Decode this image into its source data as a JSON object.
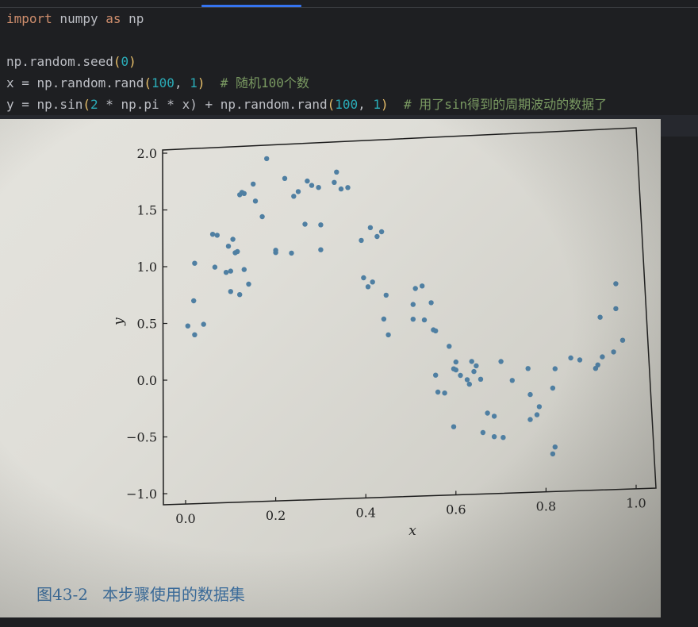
{
  "editor": {
    "code_lines": [
      [
        {
          "t": "import",
          "c": "kw"
        },
        {
          "t": " numpy ",
          "c": ""
        },
        {
          "t": "as",
          "c": "kw"
        },
        {
          "t": " np",
          "c": ""
        }
      ],
      [],
      [
        {
          "t": "np.random.seed",
          "c": ""
        },
        {
          "t": "(",
          "c": "paren"
        },
        {
          "t": "0",
          "c": "num"
        },
        {
          "t": ")",
          "c": "paren"
        }
      ],
      [
        {
          "t": "x = np.random.rand",
          "c": ""
        },
        {
          "t": "(",
          "c": "paren"
        },
        {
          "t": "100",
          "c": "num"
        },
        {
          "t": ", ",
          "c": ""
        },
        {
          "t": "1",
          "c": "num"
        },
        {
          "t": ")",
          "c": "paren"
        },
        {
          "t": "  # 随机100个数",
          "c": "cmt"
        }
      ],
      [
        {
          "t": "y = np.sin",
          "c": ""
        },
        {
          "t": "(",
          "c": "paren"
        },
        {
          "t": "2",
          "c": "num"
        },
        {
          "t": " * np.pi * x) + np.random.rand",
          "c": ""
        },
        {
          "t": "(",
          "c": "paren"
        },
        {
          "t": "100",
          "c": "num"
        },
        {
          "t": ", ",
          "c": ""
        },
        {
          "t": "1",
          "c": "num"
        },
        {
          "t": ")",
          "c": "paren"
        },
        {
          "t": "  # 用了sin得到的周期波动的数据了",
          "c": "cmt"
        }
      ]
    ]
  },
  "colors": {
    "point": "#4f7fa2",
    "axis": "#1c1c1c",
    "caption": "#3a6fa2",
    "keyword": "#cf8e6d",
    "number": "#2aacb8",
    "comment": "#7a9a62"
  },
  "caption": {
    "fig_num": "图43-2",
    "text": "本步骤使用的数据集"
  },
  "chart_data": {
    "type": "scatter",
    "xlabel": "x",
    "ylabel": "y",
    "xlim": [
      -0.05,
      1.03
    ],
    "ylim": [
      -1.05,
      2.1
    ],
    "xticks": [
      0.0,
      0.2,
      0.4,
      0.6,
      0.8,
      1.0
    ],
    "xtick_labels": [
      "0.0",
      "0.2",
      "0.4",
      "0.6",
      "0.8",
      "1.0"
    ],
    "yticks": [
      -1.0,
      -0.5,
      0.0,
      0.5,
      1.0,
      1.5,
      2.0
    ],
    "ytick_labels": [
      "−1.0",
      "−0.5",
      "0.0",
      "0.5",
      "1.0",
      "1.5",
      "2.0"
    ],
    "grid": false,
    "points": [
      [
        0.005,
        0.47
      ],
      [
        0.02,
        0.39
      ],
      [
        0.018,
        0.69
      ],
      [
        0.02,
        1.02
      ],
      [
        0.04,
        0.48
      ],
      [
        0.06,
        1.27
      ],
      [
        0.07,
        1.26
      ],
      [
        0.065,
        0.98
      ],
      [
        0.09,
        0.93
      ],
      [
        0.1,
        0.94
      ],
      [
        0.095,
        1.16
      ],
      [
        0.105,
        1.22
      ],
      [
        0.1,
        0.76
      ],
      [
        0.11,
        1.1
      ],
      [
        0.115,
        1.11
      ],
      [
        0.12,
        1.61
      ],
      [
        0.125,
        1.63
      ],
      [
        0.13,
        1.62
      ],
      [
        0.13,
        0.95
      ],
      [
        0.12,
        0.73
      ],
      [
        0.14,
        0.82
      ],
      [
        0.15,
        1.7
      ],
      [
        0.155,
        1.55
      ],
      [
        0.17,
        1.41
      ],
      [
        0.18,
        1.92
      ],
      [
        0.2,
        1.09
      ],
      [
        0.2,
        1.11
      ],
      [
        0.22,
        1.74
      ],
      [
        0.235,
        1.08
      ],
      [
        0.24,
        1.58
      ],
      [
        0.25,
        1.62
      ],
      [
        0.265,
        1.33
      ],
      [
        0.27,
        1.71
      ],
      [
        0.28,
        1.67
      ],
      [
        0.295,
        1.65
      ],
      [
        0.3,
        1.32
      ],
      [
        0.3,
        1.1
      ],
      [
        0.33,
        1.69
      ],
      [
        0.335,
        1.78
      ],
      [
        0.345,
        1.63
      ],
      [
        0.36,
        1.64
      ],
      [
        0.39,
        1.17
      ],
      [
        0.395,
        0.84
      ],
      [
        0.405,
        0.76
      ],
      [
        0.41,
        1.28
      ],
      [
        0.415,
        0.8
      ],
      [
        0.425,
        1.2
      ],
      [
        0.435,
        1.24
      ],
      [
        0.44,
        0.47
      ],
      [
        0.445,
        0.68
      ],
      [
        0.45,
        0.33
      ],
      [
        0.505,
        0.59
      ],
      [
        0.505,
        0.46
      ],
      [
        0.51,
        0.73
      ],
      [
        0.525,
        0.75
      ],
      [
        0.53,
        0.45
      ],
      [
        0.545,
        0.6
      ],
      [
        0.55,
        0.36
      ],
      [
        0.555,
        0.35
      ],
      [
        0.555,
        -0.04
      ],
      [
        0.56,
        -0.19
      ],
      [
        0.575,
        -0.2
      ],
      [
        0.585,
        0.21
      ],
      [
        0.595,
        0.01
      ],
      [
        0.595,
        -0.5
      ],
      [
        0.6,
        0.07
      ],
      [
        0.6,
        0.0
      ],
      [
        0.61,
        -0.05
      ],
      [
        0.625,
        -0.09
      ],
      [
        0.63,
        -0.13
      ],
      [
        0.635,
        0.07
      ],
      [
        0.64,
        -0.02
      ],
      [
        0.645,
        0.03
      ],
      [
        0.655,
        -0.09
      ],
      [
        0.66,
        -0.56
      ],
      [
        0.67,
        -0.39
      ],
      [
        0.685,
        -0.6
      ],
      [
        0.685,
        -0.42
      ],
      [
        0.7,
        0.06
      ],
      [
        0.705,
        -0.61
      ],
      [
        0.725,
        -0.11
      ],
      [
        0.76,
        -0.01
      ],
      [
        0.765,
        -0.46
      ],
      [
        0.765,
        -0.24
      ],
      [
        0.78,
        -0.42
      ],
      [
        0.785,
        -0.35
      ],
      [
        0.815,
        -0.77
      ],
      [
        0.815,
        -0.19
      ],
      [
        0.82,
        -0.71
      ],
      [
        0.82,
        -0.02
      ],
      [
        0.855,
        0.07
      ],
      [
        0.875,
        0.05
      ],
      [
        0.91,
        -0.03
      ],
      [
        0.915,
        0.0
      ],
      [
        0.92,
        0.42
      ],
      [
        0.925,
        0.07
      ],
      [
        0.95,
        0.11
      ],
      [
        0.955,
        0.49
      ],
      [
        0.955,
        0.71
      ],
      [
        0.97,
        0.21
      ]
    ]
  }
}
